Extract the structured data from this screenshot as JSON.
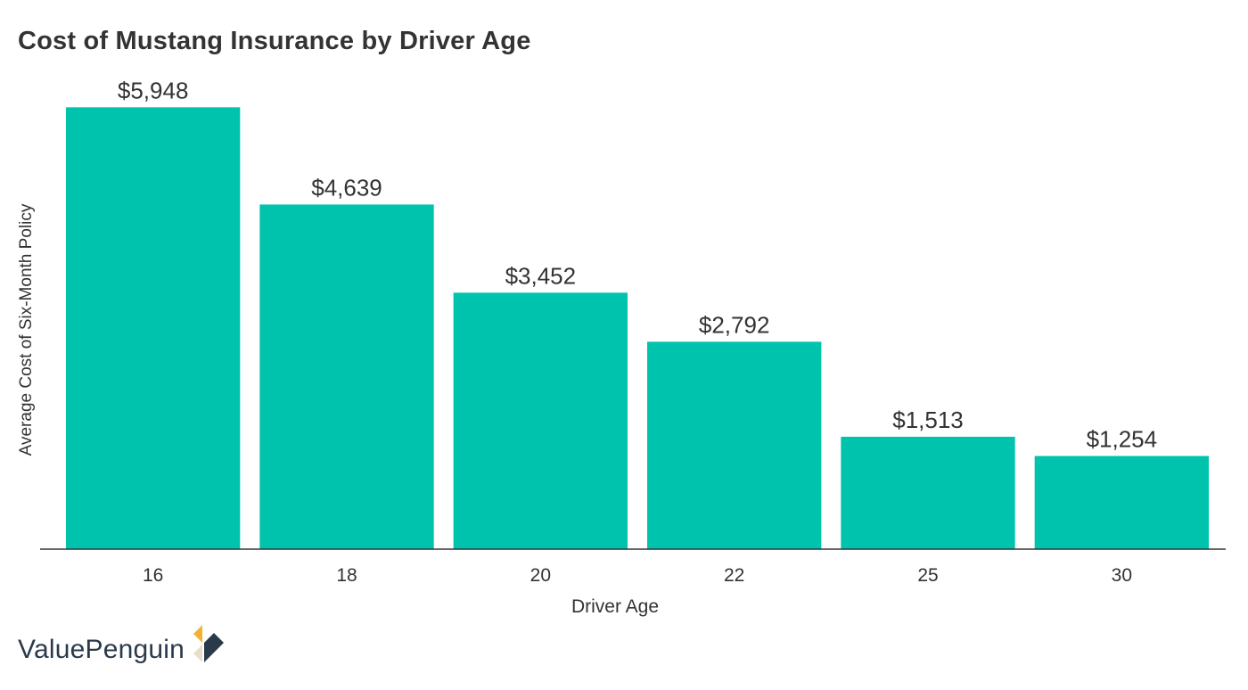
{
  "title": "Cost of Mustang Insurance by Driver Age",
  "brand": {
    "name": "ValuePenguin",
    "logo_icon": "valuepenguin-diamond-logo-icon"
  },
  "colors": {
    "bar": "#00C3AE",
    "text": "#333333",
    "axis": "#333333",
    "logo_gold": "#F2B335",
    "logo_navy": "#2B3A4A",
    "logo_beige": "#E9DFC9"
  },
  "chart_data": {
    "type": "bar",
    "title": "Cost of Mustang Insurance by Driver Age",
    "xlabel": "Driver Age",
    "ylabel": "Average Cost of Six-Month Policy",
    "categories": [
      "16",
      "18",
      "20",
      "22",
      "25",
      "30"
    ],
    "values": [
      5948,
      4639,
      3452,
      2792,
      1513,
      1254
    ],
    "data_labels": [
      "$5,948",
      "$4,639",
      "$3,452",
      "$2,792",
      "$1,513",
      "$1,254"
    ],
    "ylim": [
      0,
      6000
    ],
    "grid": false,
    "legend": "none"
  }
}
